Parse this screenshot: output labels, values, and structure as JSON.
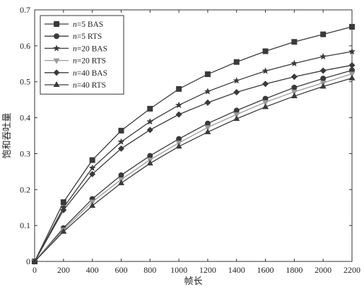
{
  "chart_data": {
    "type": "line",
    "xlabel": "帧长",
    "ylabel": "饱和吞吐量",
    "xlim": [
      0,
      2200
    ],
    "ylim": [
      0,
      0.7
    ],
    "x_ticks": [
      0,
      200,
      400,
      600,
      800,
      1000,
      1200,
      1400,
      1600,
      1800,
      2000,
      2200
    ],
    "y_ticks": [
      0,
      0.1,
      0.2,
      0.3,
      0.4,
      0.5,
      0.6,
      0.7
    ],
    "x_tick_labels": [
      "0",
      "200",
      "400",
      "600",
      "800",
      "1000",
      "1200",
      "1400",
      "1600",
      "1800",
      "2000",
      "2200"
    ],
    "y_tick_labels": [
      "0",
      "0.1",
      "0.2",
      "0.3",
      "0.4",
      "0.5",
      "0.6",
      "0.7"
    ],
    "grid": false,
    "legend_position": "top-left",
    "x": [
      0,
      200,
      400,
      600,
      800,
      1000,
      1200,
      1400,
      1600,
      1800,
      2000,
      2200
    ],
    "series": [
      {
        "name": "n=5 BAS",
        "italic_part": "n",
        "rest": "=5 BAS",
        "marker": "square",
        "color": "#3a3a3a",
        "values": [
          0,
          0.165,
          0.282,
          0.364,
          0.425,
          0.48,
          0.521,
          0.555,
          0.585,
          0.611,
          0.632,
          0.653
        ]
      },
      {
        "name": "n=5 RTS",
        "italic_part": "n",
        "rest": "=5 RTS",
        "marker": "circle",
        "color": "#3a3a3a",
        "values": [
          0,
          0.093,
          0.174,
          0.24,
          0.294,
          0.341,
          0.384,
          0.42,
          0.453,
          0.484,
          0.509,
          0.532
        ]
      },
      {
        "name": "n=20 BAS",
        "italic_part": "n",
        "rest": "=20 BAS",
        "marker": "star",
        "color": "#3a3a3a",
        "values": [
          0,
          0.15,
          0.26,
          0.333,
          0.389,
          0.435,
          0.473,
          0.503,
          0.53,
          0.551,
          0.57,
          0.584
        ]
      },
      {
        "name": "n=20 RTS",
        "italic_part": "n",
        "rest": "=20 RTS",
        "marker": "triangle-down",
        "color": "#9a9a9a",
        "values": [
          0,
          0.088,
          0.166,
          0.228,
          0.283,
          0.33,
          0.373,
          0.409,
          0.443,
          0.472,
          0.497,
          0.522
        ]
      },
      {
        "name": "n=40 BAS",
        "italic_part": "n",
        "rest": "=40 BAS",
        "marker": "diamond",
        "color": "#3a3a3a",
        "values": [
          0,
          0.143,
          0.243,
          0.314,
          0.366,
          0.409,
          0.442,
          0.471,
          0.494,
          0.514,
          0.531,
          0.546
        ]
      },
      {
        "name": "n=40 RTS",
        "italic_part": "n",
        "rest": "=40 RTS",
        "marker": "triangle-up",
        "color": "#3a3a3a",
        "values": [
          0,
          0.083,
          0.155,
          0.218,
          0.273,
          0.32,
          0.36,
          0.397,
          0.43,
          0.46,
          0.487,
          0.51
        ]
      }
    ]
  }
}
